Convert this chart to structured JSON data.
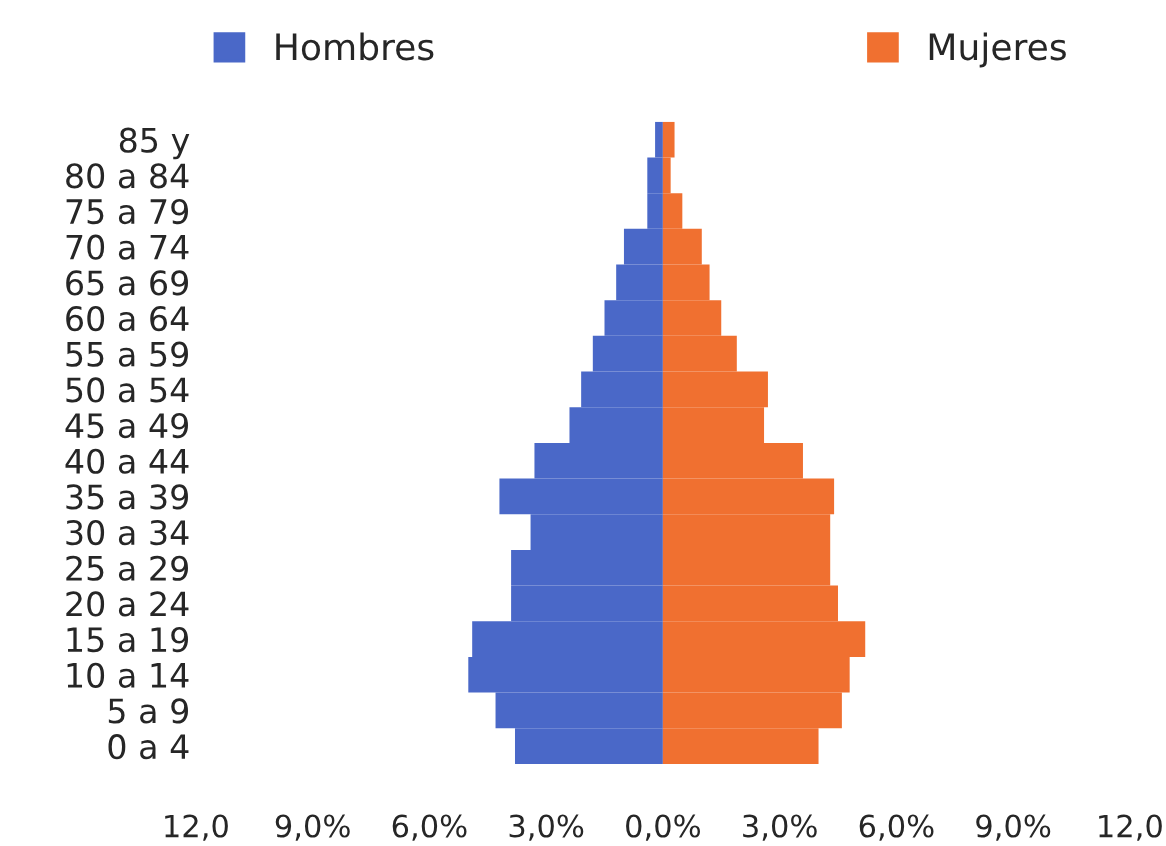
{
  "chart_data": {
    "type": "bar",
    "orientation": "horizontal",
    "stacked": true,
    "categories": [
      "85 y",
      "80 a 84",
      "75 a 79",
      "70 a 74",
      "65 a 69",
      "60 a 64",
      "55 a 59",
      "50 a 54",
      "45 a 49",
      "40 a 44",
      "35 a 39",
      "30 a 34",
      "25 a 29",
      "20 a 24",
      "15 a 19",
      "10 a 14",
      "5 a 9",
      "0 a 4"
    ],
    "series": [
      {
        "name": "Hombres",
        "color": "#4a68c8",
        "values": [
          -0.2,
          -0.4,
          -0.4,
          -1.0,
          -1.2,
          -1.5,
          -1.8,
          -2.1,
          -2.4,
          -3.3,
          -4.2,
          -3.4,
          -3.9,
          -3.9,
          -4.9,
          -5.0,
          -4.3,
          -3.8
        ]
      },
      {
        "name": "Mujeres",
        "color": "#f07030",
        "values": [
          0.3,
          0.2,
          0.5,
          1.0,
          1.2,
          1.5,
          1.9,
          2.7,
          2.6,
          3.6,
          4.4,
          4.3,
          4.3,
          4.5,
          5.2,
          4.8,
          4.6,
          4.0
        ]
      }
    ],
    "xlim": [
      -12,
      12
    ],
    "xticks": [
      {
        "value": -12,
        "label": "12,0"
      },
      {
        "value": -9,
        "label": "9,0%"
      },
      {
        "value": -6,
        "label": "6,0%"
      },
      {
        "value": -3,
        "label": "3,0%"
      },
      {
        "value": 0,
        "label": "0,0%"
      },
      {
        "value": 3,
        "label": "3,0%"
      },
      {
        "value": 6,
        "label": "6,0%"
      },
      {
        "value": 9,
        "label": "9,0%"
      },
      {
        "value": 12,
        "label": "12,0"
      }
    ],
    "grid": false,
    "legend": "top"
  }
}
